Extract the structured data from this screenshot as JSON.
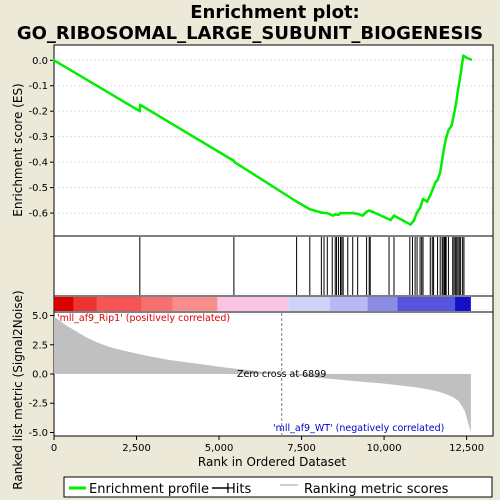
{
  "title_line1": "Enrichment plot:",
  "title_line2": "GO_RIBOSOMAL_LARGE_SUBUNIT_BIOGENESIS",
  "legend": {
    "enrichment_profile": "Enrichment profile",
    "hits": "Hits",
    "ranking_metric": "Ranking metric scores"
  },
  "colors": {
    "profile": "#00ee00",
    "hits": "#000000",
    "metric_fill": "#c0c0c0",
    "positive_label": "#dd0000",
    "negative_label": "#0000cc",
    "zero_cross_line": "#808080",
    "background": "#ece9d8"
  },
  "annotations": {
    "positive": "'mll_af9_Rip1' (positively correlated)",
    "negative": "'mll_af9_WT' (negatively correlated)",
    "zero_cross": "Zero cross at 6899"
  },
  "chart_data": [
    {
      "type": "line",
      "name": "enrichment_profile",
      "ylabel": "Enrichment score (ES)",
      "ylim": [
        -0.69,
        0.06
      ],
      "yticks": [
        0.0,
        -0.1,
        -0.2,
        -0.3,
        -0.4,
        -0.5,
        -0.6
      ],
      "ytick_labels": [
        "0.0",
        "-0.1",
        "-0.2",
        "-0.3",
        "-0.4",
        "-0.5",
        "-0.6"
      ],
      "grid": true,
      "x": [
        0,
        2600,
        2610,
        5450,
        5470,
        7350,
        7750,
        8100,
        8280,
        8450,
        8520,
        8620,
        8680,
        8760,
        8900,
        9050,
        9200,
        9350,
        9470,
        9550,
        9650,
        10200,
        10300,
        10800,
        10900,
        10990,
        11090,
        11180,
        11300,
        11400,
        11480,
        11550,
        11620,
        11700,
        11780,
        11830,
        11880,
        11950,
        12050,
        12120,
        12180,
        12230,
        12280,
        12330,
        12400,
        12500,
        12630
      ],
      "y": [
        0.0,
        -0.2,
        -0.175,
        -0.395,
        -0.4,
        -0.555,
        -0.585,
        -0.598,
        -0.6,
        -0.61,
        -0.605,
        -0.607,
        -0.6,
        -0.6,
        -0.6,
        -0.6,
        -0.603,
        -0.61,
        -0.595,
        -0.59,
        -0.595,
        -0.627,
        -0.61,
        -0.645,
        -0.63,
        -0.6,
        -0.58,
        -0.545,
        -0.555,
        -0.53,
        -0.505,
        -0.48,
        -0.47,
        -0.44,
        -0.375,
        -0.335,
        -0.305,
        -0.275,
        -0.255,
        -0.21,
        -0.17,
        -0.125,
        -0.085,
        -0.045,
        0.018,
        0.01,
        0.003
      ]
    },
    {
      "type": "scatter",
      "name": "hits",
      "x": [
        2600,
        5450,
        7350,
        7750,
        8100,
        8180,
        8280,
        8430,
        8520,
        8560,
        8620,
        8680,
        8720,
        8760,
        8900,
        9050,
        9200,
        9470,
        9550,
        9580,
        10150,
        10300,
        10780,
        10860,
        10940,
        11000,
        11090,
        11140,
        11180,
        11400,
        11460,
        11500,
        11620,
        11700,
        11760,
        11790,
        11830,
        11860,
        11880,
        11950,
        12080,
        12120,
        12160,
        12200,
        12240,
        12280,
        12320,
        12380,
        12420
      ]
    },
    {
      "type": "area",
      "name": "ranking_metric",
      "xlabel": "Rank in Ordered Dataset",
      "ylabel": "Ranked list metric (Signal2Noise)",
      "ylim": [
        -5.3,
        5.3
      ],
      "yticks": [
        5.0,
        2.5,
        0.0,
        -2.5,
        -5.0
      ],
      "ytick_labels": [
        "5.0",
        "2.5",
        "0.0",
        "-2.5",
        "-5.0"
      ],
      "zero_cross": 6899,
      "x": [
        0,
        150,
        400,
        700,
        1000,
        1300,
        1700,
        2100,
        2500,
        3000,
        3500,
        4000,
        4500,
        5000,
        5500,
        6000,
        6500,
        6899,
        7500,
        8000,
        8500,
        9000,
        9500,
        10000,
        10500,
        11000,
        11400,
        11700,
        11900,
        12100,
        12250,
        12350,
        12450,
        12550,
        12630
      ],
      "y": [
        4.9,
        4.6,
        4.1,
        3.6,
        3.1,
        2.7,
        2.3,
        2.0,
        1.75,
        1.45,
        1.2,
        1.0,
        0.82,
        0.62,
        0.45,
        0.3,
        0.12,
        0.0,
        -0.18,
        -0.32,
        -0.45,
        -0.58,
        -0.7,
        -0.82,
        -0.98,
        -1.15,
        -1.35,
        -1.55,
        -1.75,
        -2.0,
        -2.3,
        -2.7,
        -3.2,
        -4.2,
        -5.0
      ]
    }
  ],
  "x_axis": {
    "xlim": [
      0,
      13300
    ],
    "xticks": [
      0,
      2500,
      5000,
      7500,
      10000,
      12500
    ],
    "xtick_labels": [
      "0",
      "2,500",
      "5,000",
      "7,500",
      "10,000",
      "12,500"
    ]
  },
  "color_bar": {
    "segments": [
      {
        "from": 0,
        "to": 600,
        "color": "#dd0000"
      },
      {
        "from": 600,
        "to": 1300,
        "color": "#ee3333"
      },
      {
        "from": 1300,
        "to": 2650,
        "color": "#f75555"
      },
      {
        "from": 2650,
        "to": 3600,
        "color": "#f77070"
      },
      {
        "from": 3600,
        "to": 4950,
        "color": "#f78c8c"
      },
      {
        "from": 4950,
        "to": 7100,
        "color": "#fcc4e4"
      },
      {
        "from": 7100,
        "to": 8350,
        "color": "#d2d2f8"
      },
      {
        "from": 8350,
        "to": 9500,
        "color": "#b8b8f5"
      },
      {
        "from": 9500,
        "to": 10400,
        "color": "#8c8ce8"
      },
      {
        "from": 10400,
        "to": 12150,
        "color": "#5555dd"
      },
      {
        "from": 12150,
        "to": 12630,
        "color": "#1111cc"
      }
    ]
  }
}
